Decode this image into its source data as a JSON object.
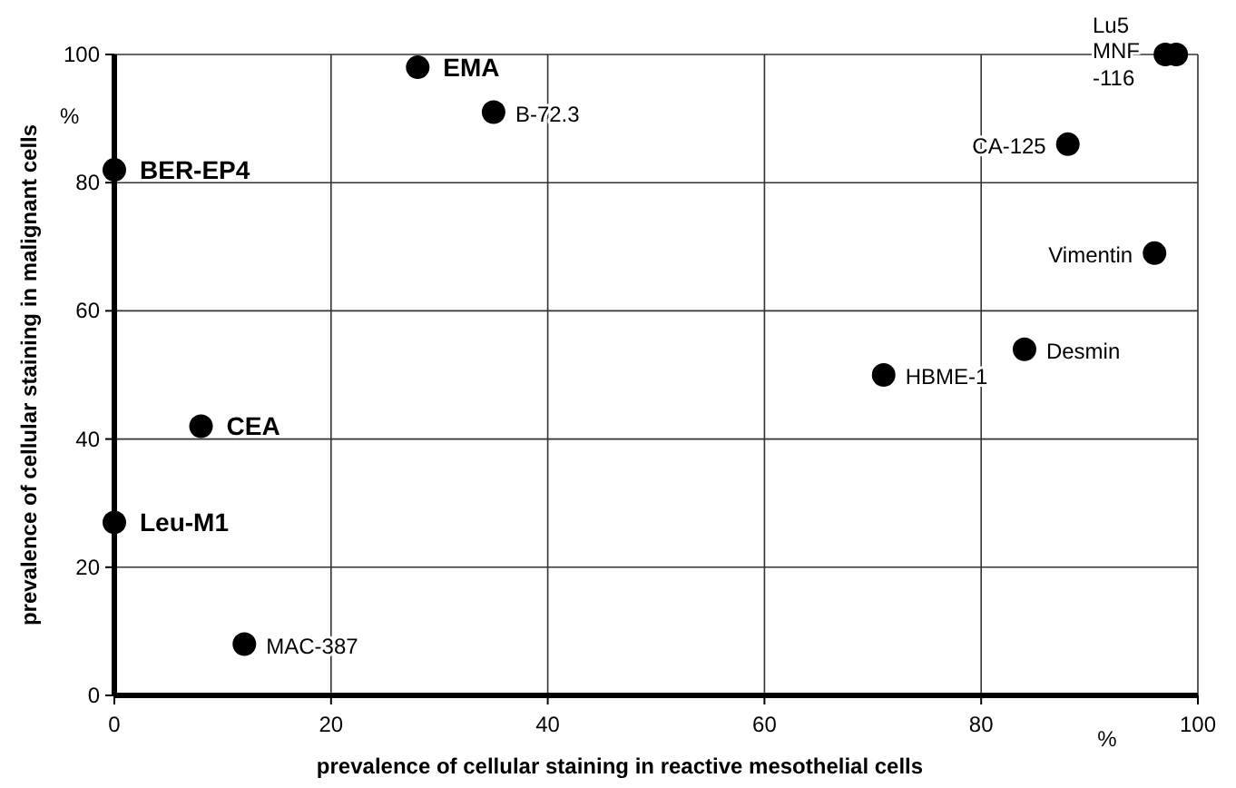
{
  "chart_data": {
    "type": "scatter",
    "xlabel": "prevalence of cellular staining in reactive mesothelial cells",
    "ylabel": "prevalence of cellular staining in malignant cells",
    "series": [
      {
        "color": "#000000",
        "x": [
          0,
          28,
          8,
          0,
          35,
          12,
          71,
          84,
          88,
          96,
          97,
          98
        ],
        "values": [
          82,
          98,
          42,
          27,
          91,
          8,
          50,
          54,
          86,
          69,
          100,
          100
        ]
      }
    ],
    "marker": "circle",
    "grid": true,
    "xlim": [
      0,
      100
    ],
    "ylim": [
      0,
      100
    ],
    "xticks": [
      0,
      20,
      40,
      60,
      80,
      100
    ],
    "yticks": [
      0,
      20,
      40,
      60,
      80,
      100
    ],
    "annotations": [
      {
        "text": "BER-EP4",
        "x": 0,
        "y": 82
      },
      {
        "text": "EMA",
        "x": 28,
        "y": 98
      },
      {
        "text": "CEA",
        "x": 8,
        "y": 42
      },
      {
        "text": "Leu-M1",
        "x": 0,
        "y": 27
      },
      {
        "text": "B-72.3",
        "x": 35,
        "y": 91
      },
      {
        "text": "MAC-387",
        "x": 12,
        "y": 8
      },
      {
        "text": "HBME-1",
        "x": 71,
        "y": 50
      },
      {
        "text": "Desmin",
        "x": 84,
        "y": 54
      },
      {
        "text": "CA-125",
        "x": 88,
        "y": 86
      },
      {
        "text": "Vimentin",
        "x": 96,
        "y": 69
      },
      {
        "text": "Lu5",
        "x": 97,
        "y": 100
      },
      {
        "text": "MNF\n-116",
        "x": 98,
        "y": 100
      },
      "%",
      "%"
    ]
  }
}
